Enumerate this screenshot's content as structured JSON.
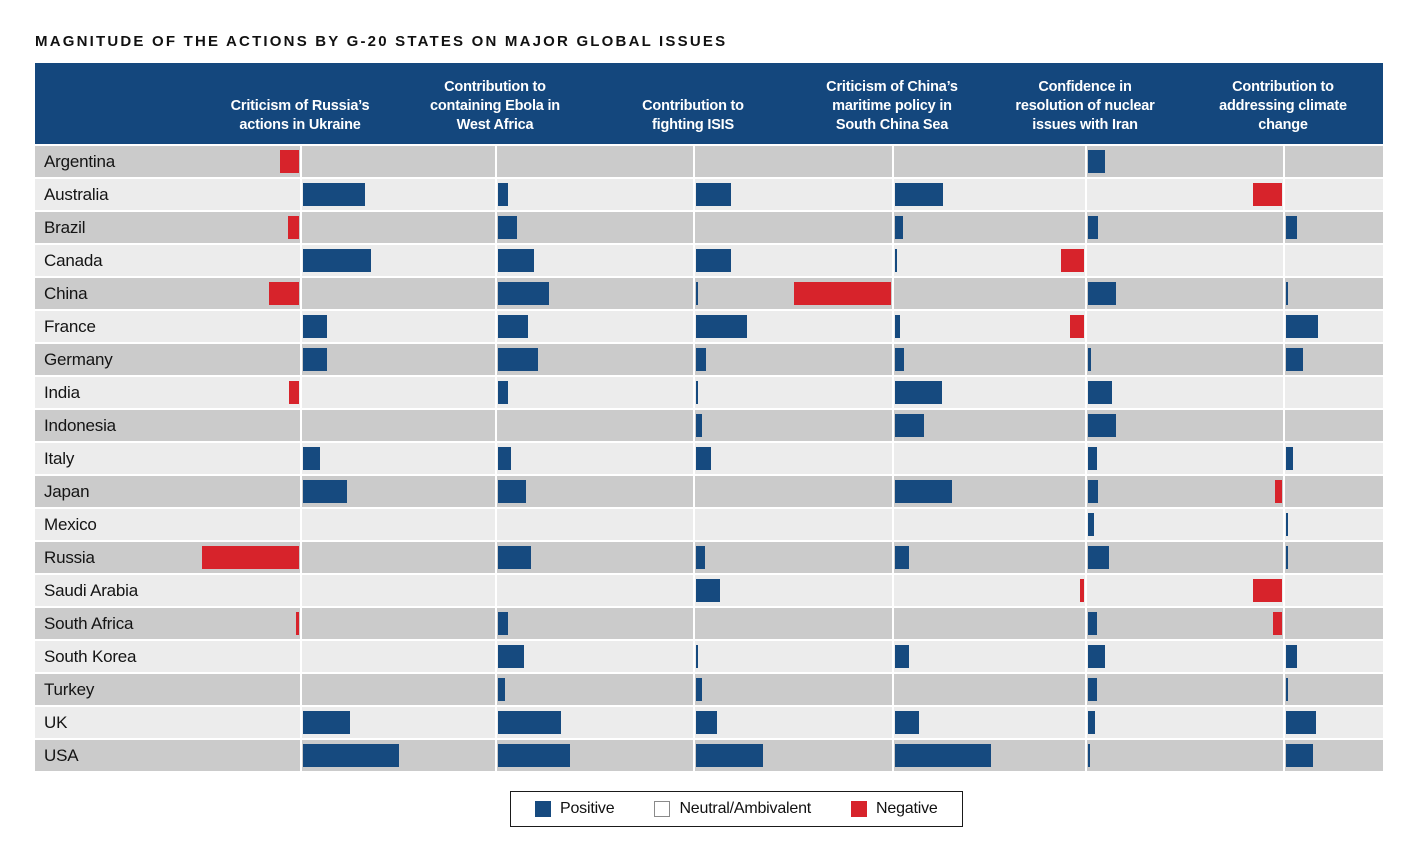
{
  "title": "MAGNITUDE OF THE ACTIONS BY G-20 STATES ON MAJOR GLOBAL ISSUES",
  "colors": {
    "header_bg": "#14477d",
    "positive": "#164a7f",
    "negative": "#d7232b",
    "row_dark": "#cbcbcb",
    "row_light": "#ececec"
  },
  "legend": {
    "items": [
      {
        "label": "Positive",
        "type": "positive"
      },
      {
        "label": "Neutral/Ambivalent",
        "type": "neutral"
      },
      {
        "label": "Negative",
        "type": "negative"
      }
    ]
  },
  "chart_data": {
    "type": "bar",
    "orientation": "horizontal-diverging",
    "title": "MAGNITUDE OF THE ACTIONS BY G-20 STATES ON MAJOR GLOBAL ISSUES",
    "value_unit": "relative magnitude (bar length in px; positive values = blue bar rightward, negative values = red bar leftward, 0 = neutral/no bar)",
    "legend": [
      "Positive",
      "Neutral/Ambivalent",
      "Negative"
    ],
    "categories": [
      "Argentina",
      "Australia",
      "Brazil",
      "Canada",
      "China",
      "France",
      "Germany",
      "India",
      "Indonesia",
      "Italy",
      "Japan",
      "Mexico",
      "Russia",
      "Saudi Arabia",
      "South Africa",
      "South Korea",
      "Turkey",
      "UK",
      "USA"
    ],
    "series": [
      {
        "name": "Criticism of Russia's actions in Ukraine",
        "label_lines": "Criticism of Russia’s\nactions in Ukraine",
        "values": [
          -19,
          62,
          -11,
          68,
          -30,
          24,
          24,
          -10,
          0,
          17,
          44,
          0,
          -97,
          0,
          -3,
          0,
          0,
          47,
          96
        ]
      },
      {
        "name": "Contribution to containing Ebola in West Africa",
        "label_lines": "Contribution to\ncontaining Ebola in\nWest Africa",
        "values": [
          0,
          10,
          19,
          36,
          51,
          30,
          40,
          10,
          0,
          13,
          28,
          0,
          33,
          0,
          10,
          26,
          7,
          63,
          72
        ]
      },
      {
        "name": "Contribution to fighting ISIS",
        "label_lines": "Contribution to\nfighting ISIS",
        "values": [
          0,
          35,
          0,
          35,
          2,
          51,
          10,
          2,
          6,
          15,
          0,
          0,
          9,
          24,
          0,
          2,
          6,
          21,
          67
        ]
      },
      {
        "name": "Criticism of China's maritime policy in South China Sea",
        "label_lines": "Criticism of China’s\nmaritime policy in\nSouth China Sea",
        "values": [
          0,
          48,
          8,
          2,
          -97,
          5,
          9,
          47,
          29,
          0,
          57,
          0,
          14,
          0,
          0,
          14,
          0,
          24,
          96
        ]
      },
      {
        "name": "Confidence in resolution of nuclear issues with Iran",
        "label_lines": "Confidence in\nresolution of nuclear\nissues with Iran",
        "values": [
          17,
          0,
          10,
          -23,
          28,
          -14,
          3,
          24,
          28,
          9,
          10,
          6,
          21,
          -4,
          9,
          17,
          9,
          7,
          2
        ]
      },
      {
        "name": "Contribution to addressing climate change",
        "label_lines": "Contribution to\naddressing climate\nchange",
        "values": [
          0,
          -29,
          11,
          0,
          2,
          32,
          17,
          0,
          0,
          7,
          -7,
          2,
          2,
          -29,
          -9,
          11,
          2,
          30,
          27
        ]
      }
    ]
  }
}
